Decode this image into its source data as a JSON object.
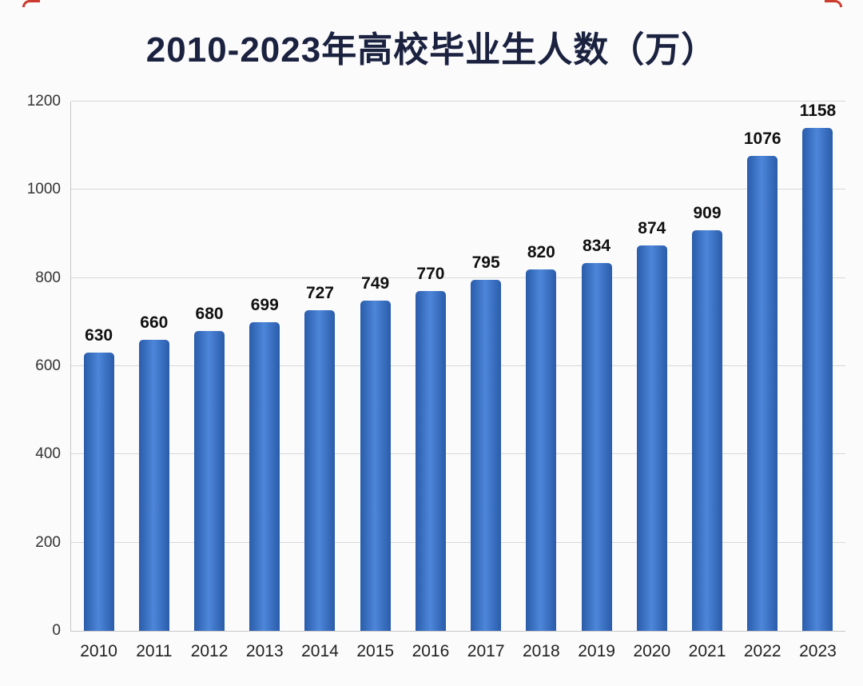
{
  "chart_data": {
    "type": "bar",
    "title": "2010-2023年高校毕业生人数（万）",
    "categories": [
      "2010",
      "2011",
      "2012",
      "2013",
      "2014",
      "2015",
      "2016",
      "2017",
      "2018",
      "2019",
      "2020",
      "2021",
      "2022",
      "2023"
    ],
    "values": [
      630,
      660,
      680,
      699,
      727,
      749,
      770,
      795,
      820,
      834,
      874,
      909,
      1076,
      1158
    ],
    "xlabel": "",
    "ylabel": "",
    "ylim": [
      0,
      1200
    ],
    "yticks": [
      0,
      200,
      400,
      600,
      800,
      1000,
      1200
    ],
    "grid": true,
    "legend": "none",
    "value_labels": true,
    "bar_gradient": [
      "#2a5caa",
      "#4d86d9",
      "#2a5caa"
    ]
  },
  "colors": {
    "background": "#fbfbfb",
    "title": "#1b2240",
    "grid": "#d8d8d8",
    "axis": "#c6c6c6",
    "value_label": "#111111",
    "tick_label": "#333333",
    "corner_mark": "#cc3b2e"
  }
}
